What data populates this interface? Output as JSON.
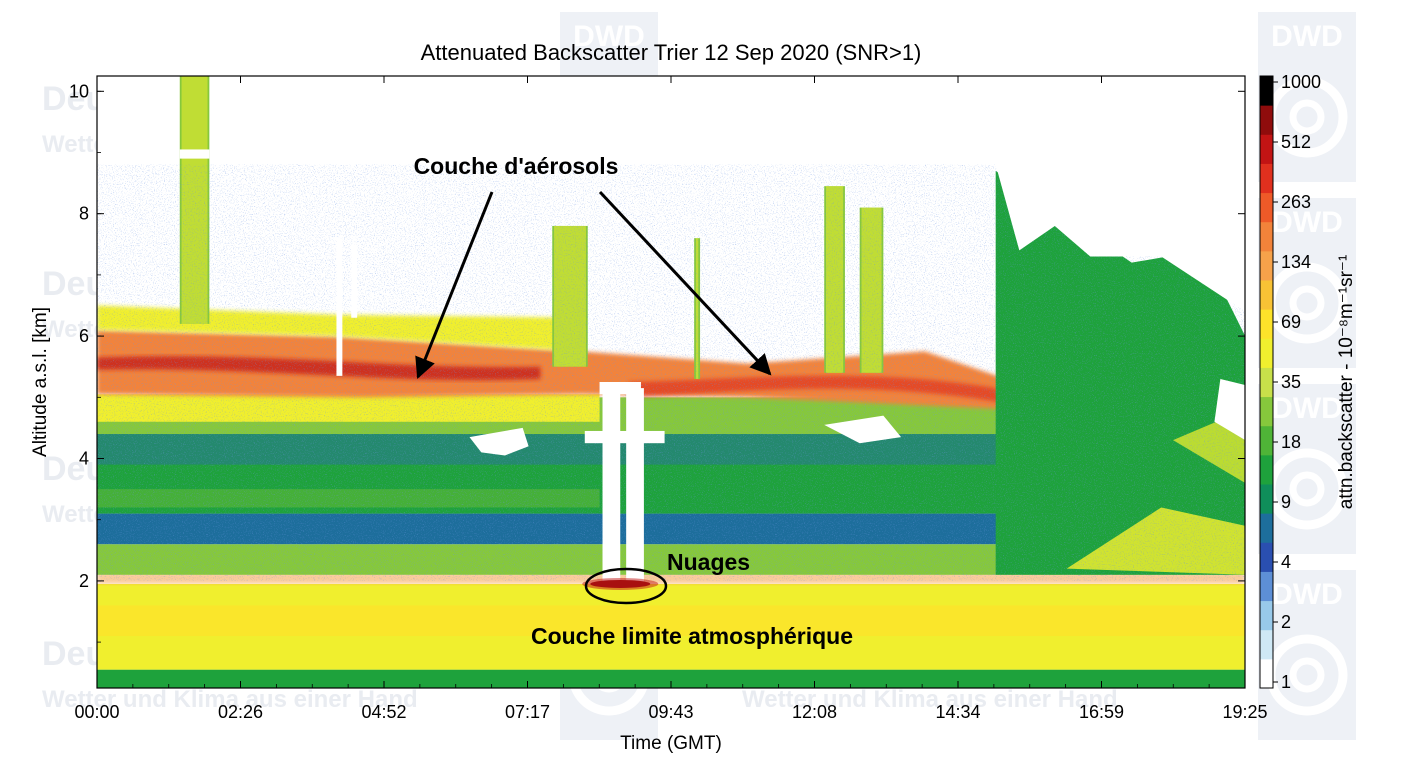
{
  "chart_data": {
    "type": "heatmap",
    "title": "Attenuated Backscatter Trier 12 Sep 2020 (SNR>1)",
    "xlabel": "Time (GMT)",
    "ylabel": "Altitude a.s.l. [km]",
    "x_ticks": [
      "00:00",
      "02:26",
      "04:52",
      "07:17",
      "09:43",
      "12:08",
      "14:34",
      "16:59",
      "19:25"
    ],
    "y_ticks": [
      "2",
      "4",
      "6",
      "8",
      "10"
    ],
    "xlim_hours": [
      0,
      19.4167
    ],
    "ylim_km": [
      0.25,
      10.25
    ],
    "colorbar": {
      "label": "attn.backscatter - 10⁻⁸m⁻¹sr⁻¹",
      "ticks": [
        "1000",
        "512",
        "263",
        "134",
        "69",
        "35",
        "18",
        "9",
        "4",
        "2",
        "1"
      ],
      "colors": [
        "#ffffff",
        "#cfe8f5",
        "#98c9ea",
        "#5d8fd6",
        "#2a4fb0",
        "#1d6e9c",
        "#0f8e5a",
        "#1ea23c",
        "#4fb437",
        "#86c83c",
        "#c8e04a",
        "#f0ef2e",
        "#fde32a",
        "#f8c235",
        "#f6a24a",
        "#f2833a",
        "#ee5a28",
        "#e0301e",
        "#c21414",
        "#8f0c0c",
        "#000000"
      ]
    },
    "layers": [
      {
        "label": "Couche d'aérosols",
        "altitude_km": [
          5.0,
          5.8
        ],
        "time_hours": [
          0,
          16.2
        ]
      },
      {
        "label": "Nuages",
        "altitude_km": [
          1.9,
          2.0
        ],
        "time_hours": [
          8.2,
          9.3
        ]
      },
      {
        "label": "Couche limite atmosphérique",
        "altitude_km": [
          0.25,
          2.0
        ],
        "time_hours": [
          0,
          19.4167
        ]
      }
    ],
    "annotations": [
      {
        "text": "Couche d'aérosols"
      },
      {
        "text": "Nuages"
      },
      {
        "text": "Couche limite atmosphérique"
      }
    ]
  },
  "watermark": {
    "name": "Deutscher Wetterdienst",
    "slogan": "Wetter und Klima aus einer Hand",
    "logo": "DWD"
  }
}
